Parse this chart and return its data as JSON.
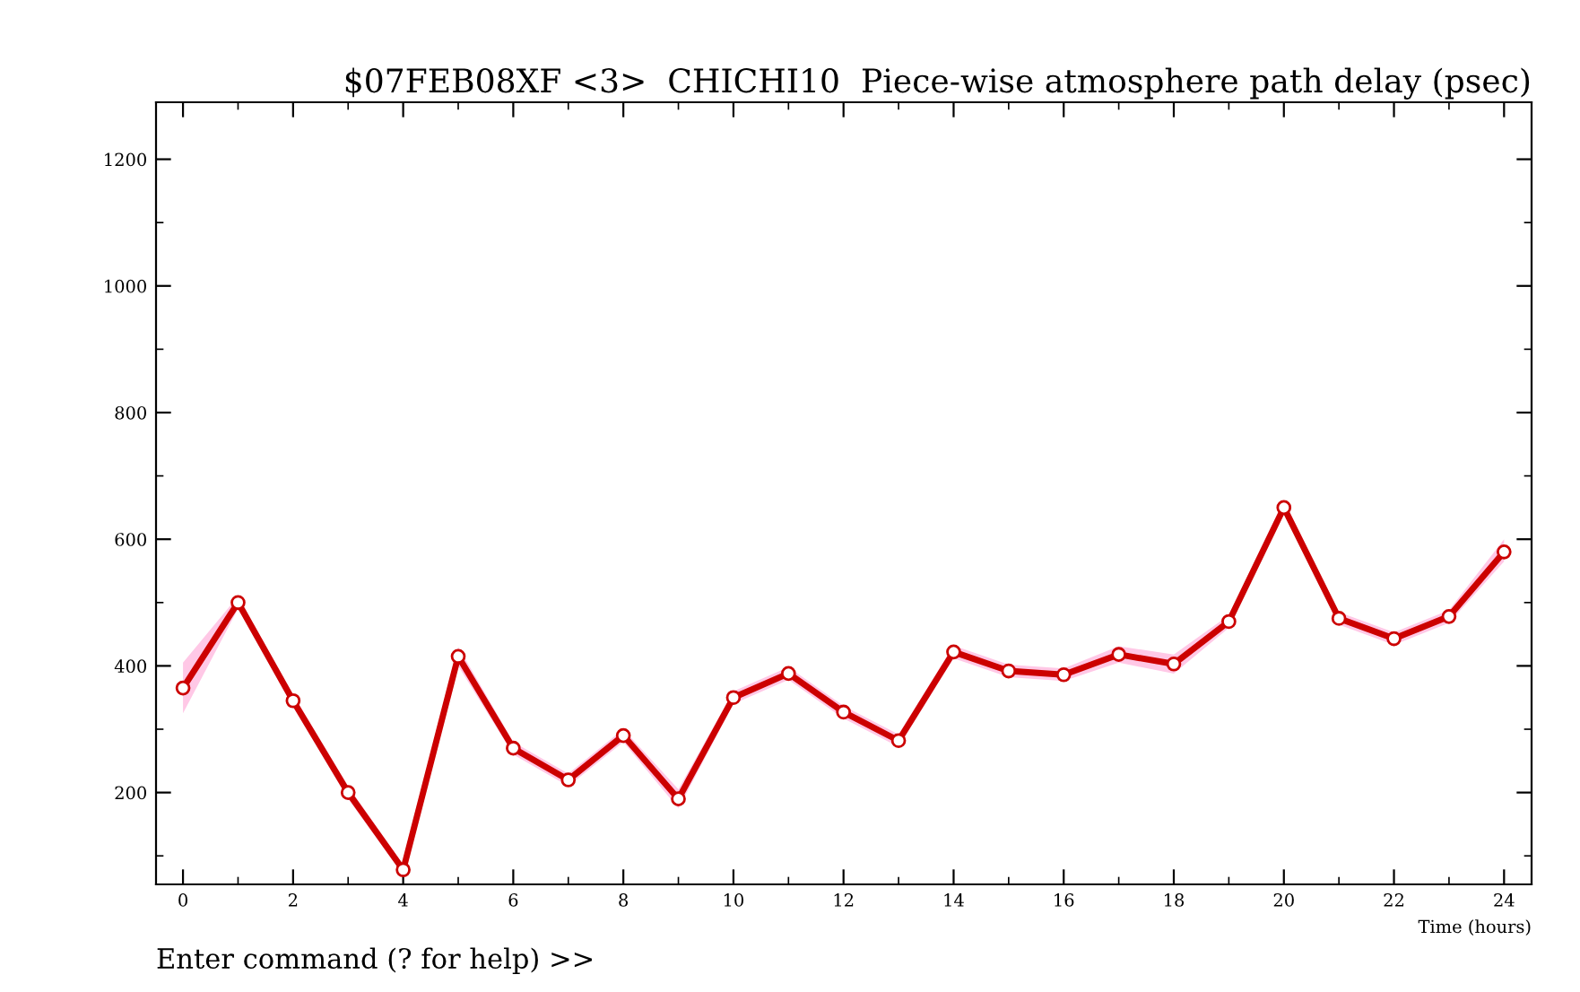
{
  "chart_data": {
    "type": "line",
    "title": "$07FEB08XF <3>  CHICHI10  Piece-wise atmosphere path delay (psec)",
    "xlabel": "Time (hours)",
    "annotations": [
      "Enter command (? for help) >>"
    ],
    "x": [
      0,
      1,
      2,
      3,
      4,
      5,
      6,
      7,
      8,
      9,
      10,
      11,
      12,
      13,
      14,
      15,
      16,
      17,
      18,
      19,
      20,
      21,
      22,
      23,
      24
    ],
    "series": [
      {
        "color": "#cc0000",
        "values": [
          365,
          500,
          345,
          200,
          78,
          415,
          270,
          220,
          290,
          190,
          350,
          388,
          327,
          282,
          422,
          392,
          386,
          418,
          403,
          470,
          650,
          475,
          443,
          478,
          580
        ],
        "lower": [
          325,
          490,
          335,
          190,
          70,
          400,
          260,
          210,
          280,
          175,
          340,
          378,
          317,
          272,
          412,
          382,
          376,
          405,
          388,
          460,
          640,
          465,
          433,
          468,
          565
        ],
        "upper": [
          405,
          510,
          355,
          210,
          86,
          430,
          280,
          230,
          300,
          205,
          360,
          398,
          337,
          292,
          432,
          402,
          396,
          431,
          418,
          480,
          662,
          485,
          453,
          488,
          600
        ]
      }
    ],
    "xlim": [
      -0.49,
      24.5
    ],
    "ylim": [
      55,
      1290
    ],
    "xticks": [
      0,
      2,
      4,
      6,
      8,
      10,
      12,
      14,
      16,
      18,
      20,
      22,
      24
    ],
    "yticks": [
      200,
      400,
      600,
      800,
      1000,
      1200
    ],
    "grid": false,
    "legend": false,
    "marker": "circle",
    "line_style": "solid"
  }
}
